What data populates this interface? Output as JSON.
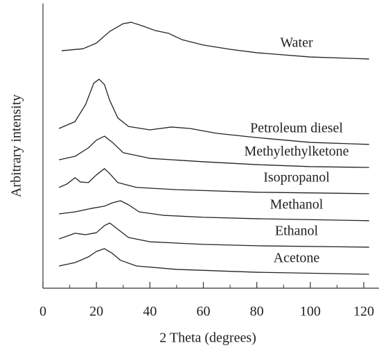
{
  "chart_data": {
    "type": "line",
    "xlabel": "2 Theta (degrees)",
    "ylabel": "Arbitrary intensity",
    "xlim": [
      0,
      120
    ],
    "xticks": [
      0,
      20,
      40,
      60,
      80,
      100,
      120
    ],
    "xminor_ticks": [
      10,
      30,
      50,
      70,
      90,
      110
    ],
    "ylim": [
      0,
      100
    ],
    "series": [
      {
        "name": "Water",
        "color": "#222222",
        "x": [
          7,
          15,
          20,
          25,
          30,
          33,
          37,
          42,
          47,
          52,
          60,
          70,
          80,
          100,
          122
        ],
        "values": [
          83.4,
          84.1,
          86.1,
          90.2,
          92.9,
          93.4,
          92.2,
          90.5,
          89.5,
          87.3,
          85.4,
          83.9,
          82.7,
          81.2,
          80.5
        ]
      },
      {
        "name": "Petroleum diesel",
        "color": "#222222",
        "x": [
          6,
          12,
          16,
          19,
          21,
          23,
          25,
          28,
          32,
          40,
          48,
          55,
          65,
          80,
          100,
          122
        ],
        "values": [
          56.1,
          58.5,
          64.6,
          72.0,
          73.4,
          71.5,
          65.9,
          59.8,
          56.8,
          55.6,
          56.6,
          56.1,
          54.4,
          52.9,
          51.2,
          50.5
        ]
      },
      {
        "name": "Methylethylketone",
        "color": "#222222",
        "x": [
          6,
          12,
          17,
          20,
          23,
          26,
          30,
          40,
          60,
          80,
          100,
          122
        ],
        "values": [
          45.1,
          46.3,
          49.3,
          52.0,
          53.4,
          51.2,
          47.6,
          45.6,
          44.4,
          43.4,
          42.7,
          42.4
        ]
      },
      {
        "name": "Isopropanol",
        "color": "#222222",
        "x": [
          6,
          9,
          12,
          14,
          17,
          20,
          23,
          25,
          28,
          35,
          50,
          80,
          122
        ],
        "values": [
          35.4,
          36.6,
          38.8,
          37.3,
          37.1,
          39.8,
          42.0,
          40.2,
          37.1,
          35.4,
          34.6,
          33.7,
          33.2
        ]
      },
      {
        "name": "Methanol",
        "color": "#222222",
        "x": [
          6,
          12,
          18,
          23,
          26,
          29,
          32,
          36,
          45,
          60,
          80,
          122
        ],
        "values": [
          26.1,
          26.8,
          28.0,
          28.8,
          30.0,
          30.7,
          29.3,
          26.8,
          25.6,
          24.9,
          24.4,
          23.7
        ]
      },
      {
        "name": "Ethanol",
        "color": "#222222",
        "x": [
          6,
          9,
          12,
          16,
          20,
          23,
          25,
          28,
          32,
          40,
          60,
          80,
          122
        ],
        "values": [
          17.3,
          18.3,
          19.3,
          18.8,
          19.5,
          22.0,
          22.9,
          20.7,
          17.8,
          16.3,
          15.4,
          14.9,
          14.4
        ]
      },
      {
        "name": "Acetone",
        "color": "#222222",
        "x": [
          6,
          12,
          17,
          20,
          23,
          26,
          29,
          35,
          50,
          80,
          122
        ],
        "values": [
          7.8,
          9.0,
          11.0,
          12.9,
          13.9,
          12.2,
          9.8,
          7.8,
          6.6,
          5.6,
          4.9
        ]
      }
    ]
  }
}
